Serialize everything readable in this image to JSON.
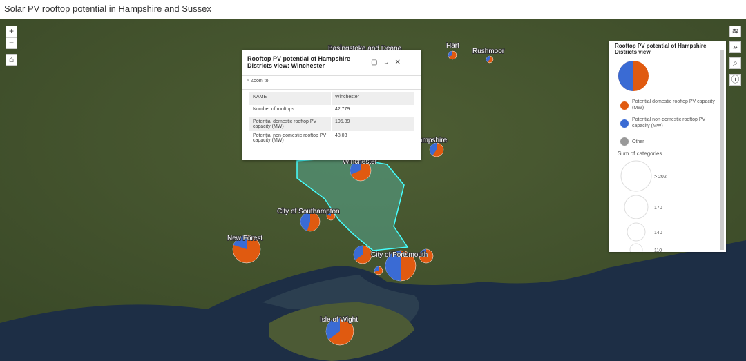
{
  "header": {
    "title": "Solar PV rooftop potential in Hampshire and Sussex"
  },
  "map": {
    "labels": [
      "Basingstoke and Deane",
      "Hart",
      "Rushmoor",
      "East Hampshire",
      "Winchester",
      "City of Southampton",
      "New Forest",
      "City of Portsmouth",
      "Isle of Wight"
    ]
  },
  "zoom": {
    "in": "+",
    "out": "−"
  },
  "popup": {
    "title": "Rooftop PV potential of Hampshire Districts view: Winchester",
    "zoom_to": "Zoom to",
    "rows": [
      [
        "NAME",
        "Winchester"
      ],
      [
        "Number of rooftops",
        "42,779"
      ],
      [
        "Potential domestic rooftop PV capacity (MW)",
        "105.89"
      ],
      [
        "Potential non-domestic rooftop PV capacity (MW)",
        "48.03"
      ]
    ]
  },
  "legend": {
    "title": "Rooftop PV potential of Hampshire Districts view",
    "items": [
      "Potential domestic rooftop PV capacity (MW)",
      "Potential non-domestic rooftop PV capacity (MW)",
      "Other"
    ],
    "size_title": "Sum of categories",
    "sizes": [
      "> 202",
      "170",
      "140",
      "110"
    ]
  }
}
